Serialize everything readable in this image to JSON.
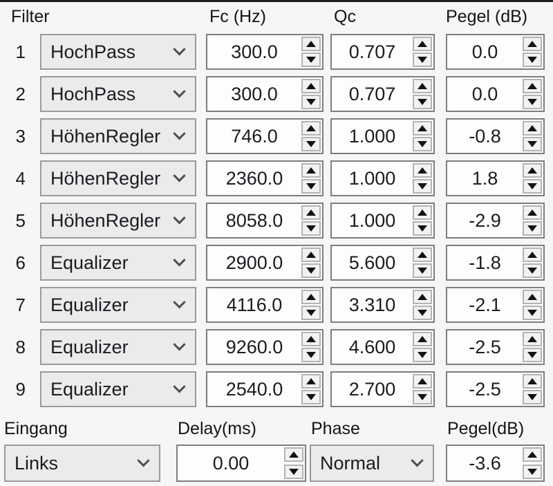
{
  "header": {
    "filter": "Filter",
    "fc": "Fc (Hz)",
    "qc": "Qc",
    "pegel": "Pegel (dB)"
  },
  "filters": [
    {
      "num": "1",
      "type": "HochPass",
      "fc": "300.0",
      "qc": "0.707",
      "pegel": "0.0"
    },
    {
      "num": "2",
      "type": "HochPass",
      "fc": "300.0",
      "qc": "0.707",
      "pegel": "0.0"
    },
    {
      "num": "3",
      "type": "HöhenRegler",
      "fc": "746.0",
      "qc": "1.000",
      "pegel": "-0.8"
    },
    {
      "num": "4",
      "type": "HöhenRegler",
      "fc": "2360.0",
      "qc": "1.000",
      "pegel": "1.8"
    },
    {
      "num": "5",
      "type": "HöhenRegler",
      "fc": "8058.0",
      "qc": "1.000",
      "pegel": "-2.9"
    },
    {
      "num": "6",
      "type": "Equalizer",
      "fc": "2900.0",
      "qc": "5.600",
      "pegel": "-1.8"
    },
    {
      "num": "7",
      "type": "Equalizer",
      "fc": "4116.0",
      "qc": "3.310",
      "pegel": "-2.1"
    },
    {
      "num": "8",
      "type": "Equalizer",
      "fc": "9260.0",
      "qc": "4.600",
      "pegel": "-2.5"
    },
    {
      "num": "9",
      "type": "Equalizer",
      "fc": "2540.0",
      "qc": "2.700",
      "pegel": "-2.5"
    }
  ],
  "bottom": {
    "eingang_label": "Eingang",
    "eingang_value": "Links",
    "delay_label": "Delay(ms)",
    "delay_value": "0.00",
    "phase_label": "Phase",
    "phase_value": "Normal",
    "pegel_label": "Pegel(dB)",
    "pegel_value": "-3.6"
  },
  "icons": {
    "dropdown": "chevron-down",
    "spinner_up": "triangle-up",
    "spinner_down": "triangle-down"
  },
  "colors": {
    "background": "#f6f6f6",
    "combo_fill": "#ebebeb",
    "combo_border": "#9a9a9a",
    "spinbox_fill": "#fdfdfd",
    "spinbox_border": "#7d7d7d",
    "button_fill": "#f2f2f2",
    "button_border": "#b3b3b3",
    "text": "#1b1b22",
    "top_line": "#1d1d1d"
  }
}
